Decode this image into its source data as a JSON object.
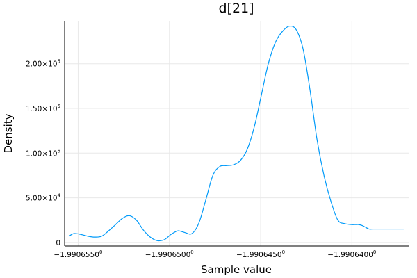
{
  "chart_data": {
    "type": "line",
    "title": "d[21]",
    "xlabel": "Sample value",
    "ylabel": "Density",
    "grid": true,
    "legend": "none",
    "xlim": [
      -1.99065574,
      -1.99063689
    ],
    "ylim": [
      -4000,
      248000
    ],
    "x_ticks": [
      {
        "value": -1.990655,
        "mantissa": "−1.9906550",
        "exponent": "0"
      },
      {
        "value": -1.99065,
        "mantissa": "−1.9906500",
        "exponent": "0"
      },
      {
        "value": -1.990645,
        "mantissa": "−1.9906450",
        "exponent": "0"
      },
      {
        "value": -1.99064,
        "mantissa": "−1.9906400",
        "exponent": "0"
      }
    ],
    "y_ticks": [
      {
        "value": 0,
        "mantissa": "0",
        "exponent": ""
      },
      {
        "value": 50000,
        "mantissa": "5.00×10",
        "exponent": "4"
      },
      {
        "value": 100000,
        "mantissa": "1.00×10",
        "exponent": "5"
      },
      {
        "value": 150000,
        "mantissa": "1.50×10",
        "exponent": "5"
      },
      {
        "value": 200000,
        "mantissa": "2.00×10",
        "exponent": "5"
      }
    ],
    "series": [
      {
        "name": "d[21]",
        "color": "#009af9",
        "x": [
          -1.9906555,
          -1.99065523,
          -1.99065485,
          -1.99065447,
          -1.99065409,
          -1.99065371,
          -1.99065333,
          -1.99065295,
          -1.99065257,
          -1.99065219,
          -1.99065181,
          -1.99065143,
          -1.99065105,
          -1.99065067,
          -1.99065029,
          -1.99064991,
          -1.99064953,
          -1.99064914,
          -1.99064876,
          -1.99064838,
          -1.990648,
          -1.99064762,
          -1.99064724,
          -1.99064686,
          -1.99064648,
          -1.9906461,
          -1.99064572,
          -1.99064534,
          -1.99064496,
          -1.99064458,
          -1.99064419,
          -1.99064381,
          -1.99064343,
          -1.99064305,
          -1.99064267,
          -1.99064229,
          -1.99064191,
          -1.99064153,
          -1.99064115,
          -1.99064077,
          -1.99064039,
          -1.99064001,
          -1.99063982,
          -1.99063963,
          -1.99063944,
          -1.99063925,
          -1.99063906,
          -1.99063887,
          -1.99063868,
          -1.99063849,
          -1.9906383,
          -1.99063811,
          -1.99063792,
          -1.99063773,
          -1.99063754,
          -1.99063735,
          -1.99063716
        ],
        "y": [
          7000,
          10000,
          9000,
          7000,
          6000,
          7000,
          13000,
          20000,
          27000,
          30000,
          25000,
          14000,
          6000,
          2000,
          3000,
          9000,
          13000,
          11000,
          10000,
          22000,
          48000,
          75000,
          85000,
          86000,
          87000,
          92000,
          105000,
          130000,
          165000,
          200000,
          224000,
          236000,
          242000,
          238000,
          216000,
          170000,
          115000,
          75000,
          46000,
          25000,
          21000,
          20000,
          20000,
          20000,
          19000,
          17000,
          15000,
          15000,
          15000,
          15000,
          15000,
          15000,
          15000,
          15000,
          15000,
          15000,
          15000
        ]
      }
    ]
  }
}
